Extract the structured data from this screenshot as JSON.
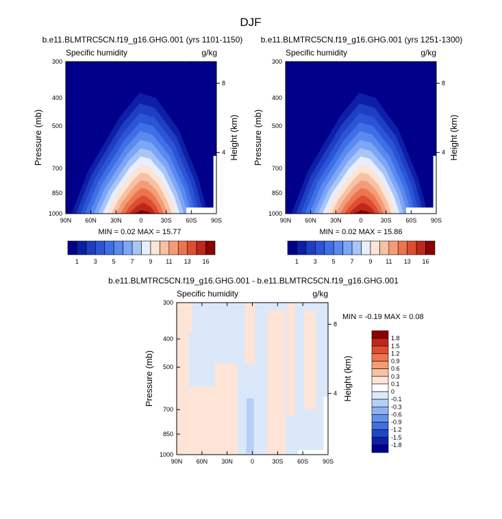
{
  "figure": {
    "title": "DJF"
  },
  "chart_data": [
    {
      "type": "heatmap",
      "title": "b.e11.BLMTRC5CN.f19_g16.GHG.001 (yrs 1101-1150)",
      "left_label": "Specific humidity",
      "right_label": "g/kg",
      "ylabel": "Pressure (mb)",
      "ylabel_right": "Height (km)",
      "x_ticks": [
        "90N",
        "60N",
        "30N",
        "0",
        "30S",
        "60S",
        "90S"
      ],
      "y_ticks": [
        "300",
        "400",
        "500",
        "700",
        "850",
        "1000"
      ],
      "height_ticks": [
        "8",
        "4"
      ],
      "stats": "MIN =  0.02  MAX = 15.77",
      "min": 0.02,
      "max": 15.77,
      "colorbar_labels": [
        "1",
        "3",
        "5",
        "7",
        "9",
        "11",
        "13",
        "16"
      ],
      "levels": [
        0.5,
        1,
        2,
        3,
        4,
        5,
        6,
        7,
        8,
        9,
        10,
        11,
        12,
        13,
        14,
        16
      ]
    },
    {
      "type": "heatmap",
      "title": "b.e11.BLMTRC5CN.f19_g16.GHG.001 (yrs 1251-1300)",
      "left_label": "Specific humidity",
      "right_label": "g/kg",
      "ylabel": "Pressure (mb)",
      "ylabel_right": "Height (km)",
      "x_ticks": [
        "90N",
        "60N",
        "30N",
        "0",
        "30S",
        "60S",
        "90S"
      ],
      "y_ticks": [
        "300",
        "400",
        "500",
        "700",
        "850",
        "1000"
      ],
      "height_ticks": [
        "8",
        "4"
      ],
      "stats": "MIN =  0.02  MAX = 15.86",
      "min": 0.02,
      "max": 15.86,
      "colorbar_labels": [
        "1",
        "3",
        "5",
        "7",
        "9",
        "11",
        "13",
        "16"
      ],
      "levels": [
        0.5,
        1,
        2,
        3,
        4,
        5,
        6,
        7,
        8,
        9,
        10,
        11,
        12,
        13,
        14,
        16
      ]
    },
    {
      "type": "heatmap",
      "title": "b.e11.BLMTRC5CN.f19_g16.GHG.001 - b.e11.BLMTRC5CN.f19_g16.GHG.001",
      "left_label": "Specific humidity",
      "right_label": "g/kg",
      "ylabel": "Pressure (mb)",
      "ylabel_right": "Height (km)",
      "x_ticks": [
        "90N",
        "60N",
        "30N",
        "0",
        "30S",
        "60S",
        "90S"
      ],
      "y_ticks": [
        "300",
        "400",
        "500",
        "700",
        "850",
        "1000"
      ],
      "height_ticks": [
        "8",
        "4"
      ],
      "stats": "MIN = -0.19  MAX =  0.08",
      "min": -0.19,
      "max": 0.08,
      "colorbar_labels": [
        "1.8",
        "1.5",
        "1.2",
        "0.9",
        "0.6",
        "0.3",
        "0.1",
        "0",
        "-0.1",
        "-0.3",
        "-0.6",
        "-0.9",
        "-1.2",
        "-1.5",
        "-1.8"
      ]
    }
  ],
  "colors": {
    "seq": [
      "#00008b",
      "#0d1fa6",
      "#1e3ec4",
      "#2c55d6",
      "#3f6fe6",
      "#5a89f0",
      "#7ea6f7",
      "#a8c5fa",
      "#e8eefb",
      "#fde4d6",
      "#f8c1a4",
      "#f49c77",
      "#ec744f",
      "#df4c30",
      "#c0271b",
      "#8b0000"
    ],
    "div": [
      "#8b0000",
      "#c0271b",
      "#df4c30",
      "#ec744f",
      "#f49c77",
      "#f8c1a4",
      "#fde4d6",
      "#ffffff",
      "#dbe8fa",
      "#b6cff6",
      "#8eb1f1",
      "#6690ea",
      "#3f6fe0",
      "#2046c4",
      "#0d1fa6",
      "#00008b"
    ],
    "diff_pos": "#fde4d6",
    "diff_neg": "#dbe8fa",
    "diff_strong": "#b6cff6"
  }
}
